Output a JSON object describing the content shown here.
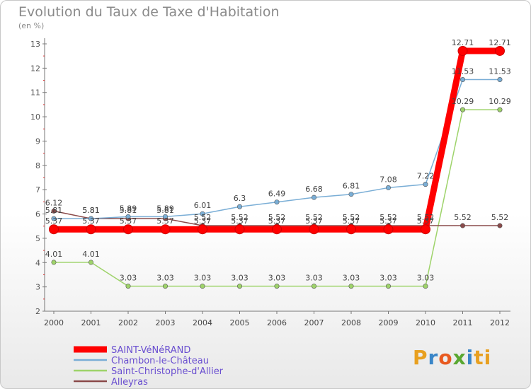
{
  "chart_data": {
    "type": "line",
    "title": "Evolution du Taux de Taxe d'Habitation",
    "subtitle": "(en %)",
    "x": [
      "2000",
      "2001",
      "2002",
      "2003",
      "2004",
      "2005",
      "2006",
      "2007",
      "2008",
      "2009",
      "2010",
      "2011",
      "2012"
    ],
    "ylim": [
      2,
      13
    ],
    "yticks": [
      2,
      3,
      4,
      5,
      6,
      7,
      8,
      9,
      10,
      11,
      12,
      13
    ],
    "grid": false,
    "legend_position": "bottom-left",
    "series": [
      {
        "name": "SAINT-VéNéRAND",
        "color": "#ff0000",
        "values": [
          5.37,
          5.37,
          5.37,
          5.37,
          5.37,
          5.37,
          5.37,
          5.37,
          5.37,
          5.37,
          5.37,
          12.71,
          12.71
        ],
        "labels": [
          "5.37",
          "5.37",
          "5.37",
          "5.37",
          "5.37",
          "5.37",
          "5.37",
          "5.37",
          "5.37",
          "5.37",
          "5.37",
          "12.71",
          "12.71"
        ]
      },
      {
        "name": "Chambon-le-Château",
        "color": "#7aaed6",
        "values": [
          5.81,
          5.81,
          5.89,
          5.89,
          6.01,
          6.3,
          6.49,
          6.68,
          6.81,
          7.08,
          7.22,
          11.53,
          11.53
        ],
        "labels": [
          "5.81",
          "5.81",
          "5.89",
          "5.89",
          "6.01",
          "6.3",
          "6.49",
          "6.68",
          "6.81",
          "7.08",
          "7.22",
          "11.53",
          "11.53"
        ]
      },
      {
        "name": "Saint-Christophe-d'Allier",
        "color": "#9ed36a",
        "values": [
          4.01,
          4.01,
          3.03,
          3.03,
          3.03,
          3.03,
          3.03,
          3.03,
          3.03,
          3.03,
          3.03,
          10.29,
          10.29
        ],
        "labels": [
          "4.01",
          "4.01",
          "3.03",
          "3.03",
          "3.03",
          "3.03",
          "3.03",
          "3.03",
          "3.03",
          "3.03",
          "3.03",
          "10.29",
          "10.29"
        ]
      },
      {
        "name": "Alleyras",
        "color": "#8a4a4a",
        "values": [
          6.12,
          5.81,
          5.81,
          5.81,
          5.52,
          5.52,
          5.52,
          5.52,
          5.52,
          5.52,
          5.52,
          5.52,
          5.52
        ],
        "labels": [
          "6.12",
          "5.81",
          "5.81",
          "5.81",
          "5.52",
          "5.52",
          "5.52",
          "5.52",
          "5.52",
          "5.52",
          "5.52",
          "5.52",
          "5.52"
        ]
      }
    ]
  },
  "logo": {
    "letters": [
      "P",
      "r",
      "o",
      "x",
      "i",
      "t",
      "i"
    ]
  }
}
